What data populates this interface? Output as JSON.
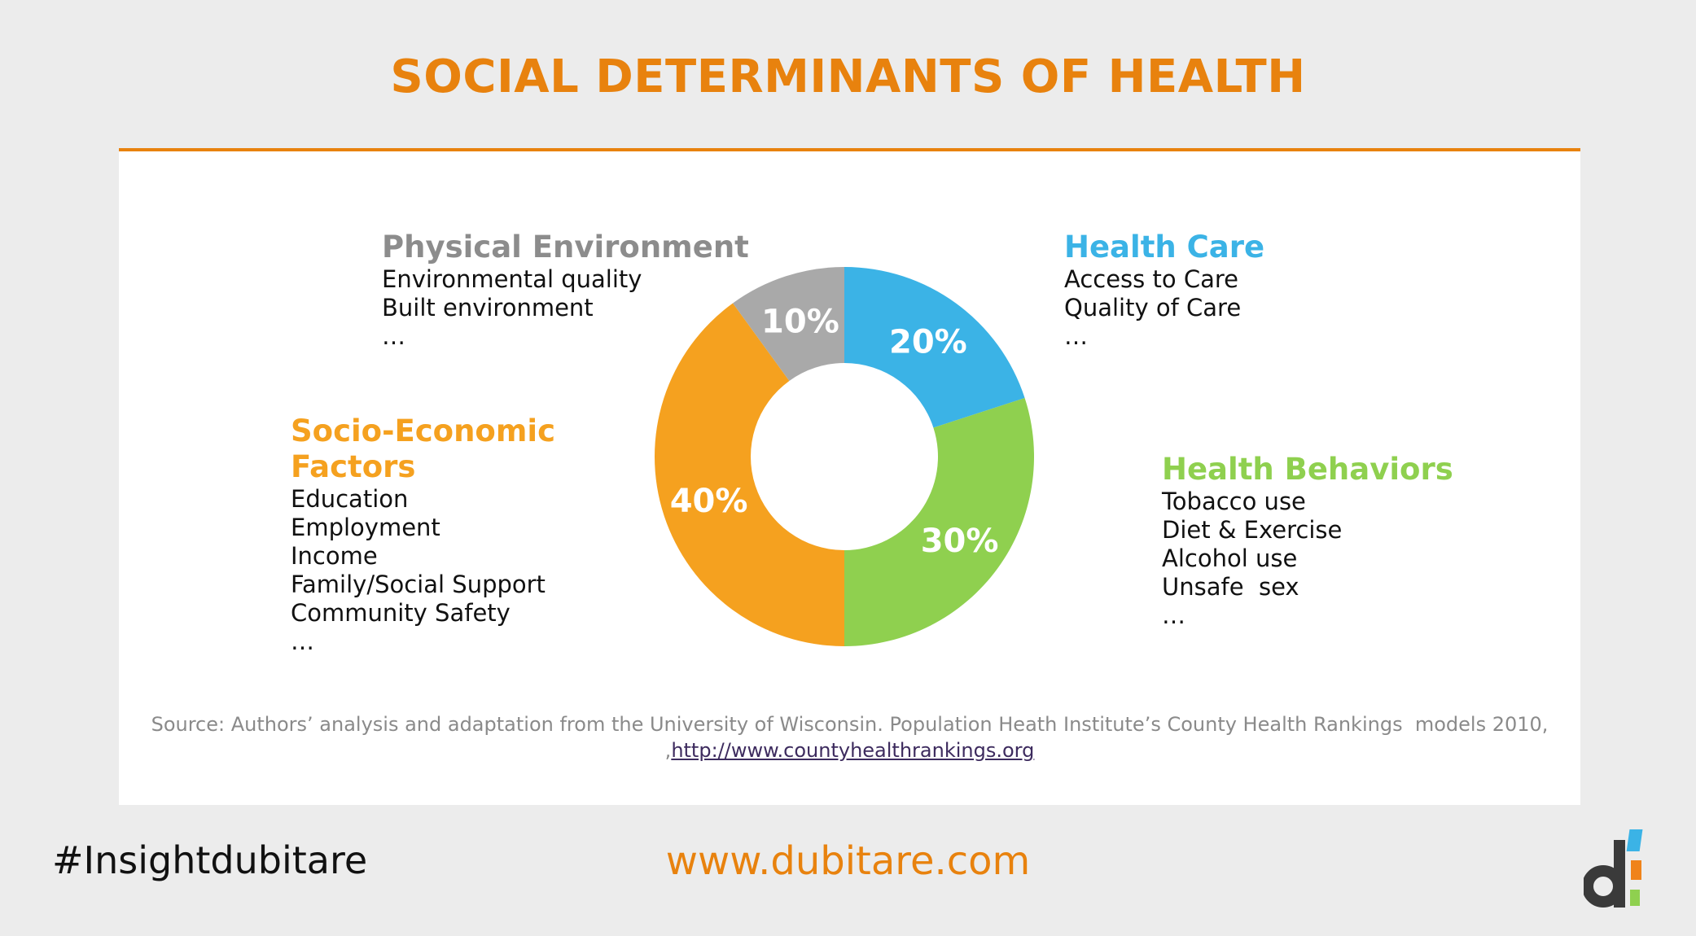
{
  "title": "SOCIAL DETERMINANTS OF HEALTH",
  "categories": {
    "physical": {
      "head": "Physical Environment",
      "items": [
        "Environmental quality",
        "Built environment",
        "…"
      ]
    },
    "healthcare": {
      "head": "Health Care",
      "items": [
        "Access to Care",
        "Quality of Care",
        "…"
      ]
    },
    "socio": {
      "head_line1": "Socio-Economic",
      "head_line2": "Factors",
      "items": [
        "Education",
        "Employment",
        "Income",
        "Family/Social Support",
        "Community Safety",
        "…"
      ]
    },
    "behaviors": {
      "head": "Health Behaviors",
      "items": [
        "Tobacco use",
        "Diet & Exercise",
        "Alcohol use",
        "Unsafe  sex",
        "…"
      ]
    }
  },
  "source": {
    "text": "Source: Authors’ analysis and adaptation from the University of Wisconsin. Population Heath Institute’s County Health Rankings  models 2010,",
    "prefix": ",",
    "link": "http://www.countyhealthrankings.org"
  },
  "footer": {
    "hashtag": "#Insightdubitare",
    "url": "www.dubitare.com"
  },
  "colors": {
    "accent": "#e8820e",
    "health_care": "#3bb3e6",
    "health_behaviors": "#8fd04f",
    "socio_economic": "#f5a11f",
    "physical_environment": "#a9a9a9"
  },
  "chart_data": {
    "type": "pie",
    "labels": [
      "Health Care",
      "Health Behaviors",
      "Socio-Economic Factors",
      "Physical Environment"
    ],
    "values": [
      20,
      30,
      40,
      10
    ],
    "value_labels": [
      "20%",
      "30%",
      "40%",
      "10%"
    ],
    "colors": [
      "#3bb3e6",
      "#8fd04f",
      "#f5a11f",
      "#a9a9a9"
    ]
  }
}
